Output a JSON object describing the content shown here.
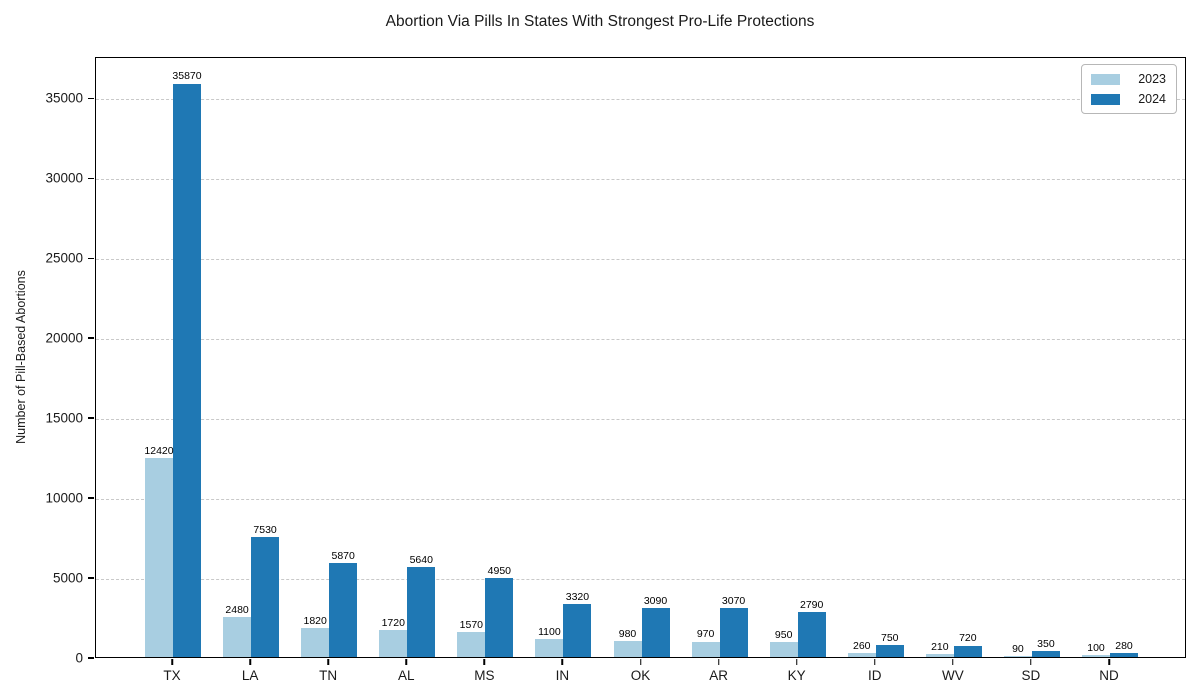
{
  "title": "Abortion Via Pills In States With Strongest Pro-Life Protections",
  "chart_data": {
    "type": "bar",
    "title": "Abortion Via Pills In States With Strongest Pro-Life Protections",
    "xlabel": "",
    "ylabel": "Number of Pill-Based Abortions",
    "categories": [
      "TX",
      "LA",
      "TN",
      "AL",
      "MS",
      "IN",
      "OK",
      "AR",
      "KY",
      "ID",
      "WV",
      "SD",
      "ND"
    ],
    "series": [
      {
        "name": "2023",
        "color": "#a8cee1",
        "values": [
          12420,
          2480,
          1820,
          1720,
          1570,
          1100,
          980,
          970,
          950,
          260,
          210,
          90,
          100
        ]
      },
      {
        "name": "2024",
        "color": "#1f78b4",
        "values": [
          35870,
          7530,
          5870,
          5640,
          4950,
          3320,
          3090,
          3070,
          2790,
          750,
          720,
          350,
          280
        ]
      }
    ],
    "ylim": [
      0,
      37590
    ],
    "yticks": [
      0,
      5000,
      10000,
      15000,
      20000,
      25000,
      30000,
      35000
    ],
    "grid": "horizontal-dashed",
    "gridline_color": "#c9c9c9",
    "bar_value_labels": true,
    "legend_position": "upper-right"
  }
}
